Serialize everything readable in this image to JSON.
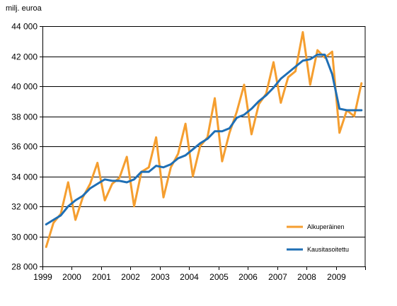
{
  "chart_data": {
    "type": "line",
    "unit_label": "milj. euroa",
    "xlabel": "",
    "ylabel": "",
    "ylim": [
      28000,
      44000
    ],
    "ytick_values": [
      28000,
      30000,
      32000,
      34000,
      36000,
      38000,
      40000,
      42000,
      44000
    ],
    "ytick_labels": [
      "28 000",
      "30 000",
      "32 000",
      "34 000",
      "36 000",
      "38 000",
      "40 000",
      "42 000",
      "44 000"
    ],
    "xlim": [
      1999.0,
      2010.0
    ],
    "xtick_values": [
      1999,
      2000,
      2001,
      2002,
      2003,
      2004,
      2005,
      2006,
      2007,
      2008,
      2009
    ],
    "xtick_labels": [
      "1999",
      "2000",
      "2001",
      "2002",
      "2003",
      "2004",
      "2005",
      "2006",
      "2007",
      "2008",
      "2009"
    ],
    "grid": "horizontal",
    "legend_placement": "bottom-right",
    "x": [
      1999.125,
      1999.375,
      1999.625,
      1999.875,
      2000.125,
      2000.375,
      2000.625,
      2000.875,
      2001.125,
      2001.375,
      2001.625,
      2001.875,
      2002.125,
      2002.375,
      2002.625,
      2002.875,
      2003.125,
      2003.375,
      2003.625,
      2003.875,
      2004.125,
      2004.375,
      2004.625,
      2004.875,
      2005.125,
      2005.375,
      2005.625,
      2005.875,
      2006.125,
      2006.375,
      2006.625,
      2006.875,
      2007.125,
      2007.375,
      2007.625,
      2007.875,
      2008.125,
      2008.375,
      2008.625,
      2008.875,
      2009.125,
      2009.375,
      2009.625,
      2009.875
    ],
    "series": [
      {
        "name": "Alkuperäinen",
        "color": "#F59E2F",
        "values": [
          29300,
          30900,
          31500,
          33600,
          31100,
          32600,
          33500,
          34900,
          32400,
          33500,
          33900,
          35300,
          32000,
          34300,
          34600,
          36600,
          32600,
          34600,
          35500,
          37500,
          34000,
          36000,
          36600,
          39200,
          35000,
          36900,
          38300,
          40100,
          36800,
          38800,
          39500,
          41600,
          38900,
          40600,
          41000,
          43600,
          40100,
          42400,
          41900,
          42300,
          36900,
          38400,
          38000,
          40200
        ]
      },
      {
        "name": "Kausitasoitettu",
        "color": "#1F6FB5",
        "values": [
          30800,
          31100,
          31400,
          32000,
          32400,
          32700,
          33200,
          33500,
          33800,
          33700,
          33700,
          33600,
          33800,
          34300,
          34300,
          34700,
          34600,
          34800,
          35200,
          35400,
          35800,
          36200,
          36500,
          37000,
          37000,
          37200,
          37900,
          38100,
          38500,
          39000,
          39400,
          39900,
          40500,
          40900,
          41300,
          41700,
          41800,
          42100,
          42100,
          40800,
          38500,
          38400,
          38400,
          38400
        ]
      }
    ]
  }
}
